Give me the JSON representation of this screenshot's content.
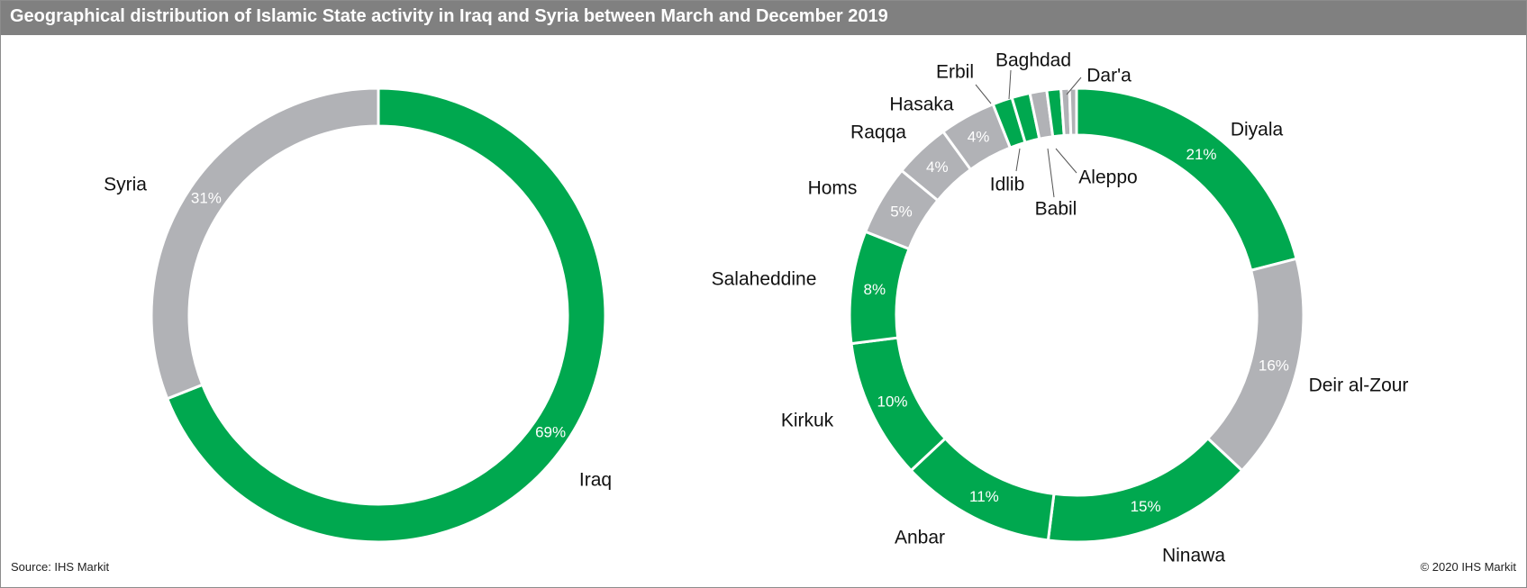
{
  "header": {
    "title": "Geographical distribution of Islamic State activity in Iraq and Syria between March and December 2019"
  },
  "footer": {
    "source": "Source: IHS Markit",
    "copyright": "© 2020 IHS Markit"
  },
  "colors": {
    "iraq": "#00a84f",
    "syria": "#b1b2b6",
    "title_bar": "#808080"
  },
  "chart_data": [
    {
      "type": "pie",
      "style": "donut",
      "slices": [
        {
          "label": "Iraq",
          "value": 69,
          "value_label": "69%",
          "color": "#00a84f"
        },
        {
          "label": "Syria",
          "value": 31,
          "value_label": "31%",
          "color": "#b1b2b6"
        }
      ]
    },
    {
      "type": "pie",
      "style": "donut",
      "slices": [
        {
          "label": "Diyala",
          "value": 21,
          "value_label": "21%",
          "color": "#00a84f"
        },
        {
          "label": "Deir al-Zour",
          "value": 16,
          "value_label": "16%",
          "color": "#b1b2b6"
        },
        {
          "label": "Ninawa",
          "value": 15,
          "value_label": "15%",
          "color": "#00a84f"
        },
        {
          "label": "Anbar",
          "value": 11,
          "value_label": "11%",
          "color": "#00a84f"
        },
        {
          "label": "Kirkuk",
          "value": 10,
          "value_label": "10%",
          "color": "#00a84f"
        },
        {
          "label": "Salaheddine",
          "value": 8,
          "value_label": "8%",
          "color": "#00a84f"
        },
        {
          "label": "Homs",
          "value": 5,
          "value_label": "5%",
          "color": "#b1b2b6"
        },
        {
          "label": "Raqqa",
          "value": 4,
          "value_label": "4%",
          "color": "#b1b2b6"
        },
        {
          "label": "Hasaka",
          "value": 4,
          "value_label": "4%",
          "color": "#b1b2b6"
        },
        {
          "label": "Erbil",
          "value": 1.4,
          "value_label": "",
          "color": "#00a84f"
        },
        {
          "label": "Idlib",
          "value": 1.3,
          "value_label": "",
          "color": "#00a84f"
        },
        {
          "label": "Baghdad",
          "value": 1.2,
          "value_label": "",
          "color": "#b1b2b6"
        },
        {
          "label": "Babil",
          "value": 1.0,
          "value_label": "",
          "color": "#00a84f"
        },
        {
          "label": "Aleppo",
          "value": 0.6,
          "value_label": "",
          "color": "#b1b2b6"
        },
        {
          "label": "Dar'a",
          "value": 0.5,
          "value_label": "",
          "color": "#b1b2b6"
        }
      ]
    }
  ]
}
